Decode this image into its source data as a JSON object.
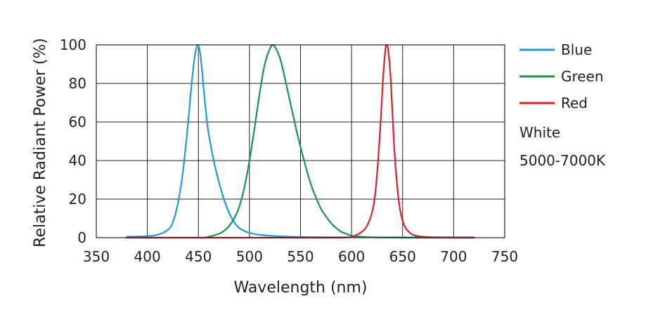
{
  "chart_data": {
    "type": "line",
    "title": "",
    "xlabel": "Wavelength (nm)",
    "ylabel": "Relative Radiant Power (%)",
    "xlim": [
      350,
      750
    ],
    "ylim": [
      0,
      100
    ],
    "x_ticks": [
      350,
      400,
      450,
      500,
      550,
      600,
      650,
      700,
      750
    ],
    "y_ticks": [
      0,
      20,
      40,
      60,
      80,
      100
    ],
    "grid": true,
    "legend_position": "right",
    "series": [
      {
        "name": "Blue",
        "color": "#1e9ad6",
        "x": [
          380,
          400,
          410,
          420,
          425,
          430,
          435,
          440,
          443,
          445,
          447,
          449,
          450,
          451,
          453,
          455,
          458,
          460,
          465,
          470,
          475,
          480,
          485,
          490,
          495,
          500,
          510,
          520,
          540,
          560,
          600,
          650,
          700,
          720
        ],
        "y": [
          0.5,
          0.8,
          1.5,
          4,
          8,
          18,
          35,
          60,
          78,
          88,
          96,
          100,
          99.5,
          98,
          90,
          78,
          62,
          54,
          40,
          29,
          20,
          13,
          8,
          5,
          3.5,
          2.5,
          1.5,
          1,
          0.5,
          0.3,
          0.2,
          0.2,
          0.2,
          0.2
        ]
      },
      {
        "name": "Green",
        "color": "#1a9447",
        "x": [
          380,
          450,
          460,
          470,
          475,
          480,
          485,
          490,
          495,
          500,
          505,
          510,
          515,
          520,
          523,
          525,
          530,
          535,
          540,
          545,
          550,
          555,
          560,
          565,
          570,
          575,
          580,
          585,
          590,
          595,
          600,
          610,
          620,
          650,
          700,
          720
        ],
        "y": [
          0,
          0,
          0.5,
          2,
          3.5,
          6,
          10,
          16,
          26,
          40,
          57,
          75,
          90,
          98,
          100,
          99,
          93,
          82,
          70,
          58,
          47,
          37,
          28,
          21,
          15,
          11,
          7.5,
          5,
          3,
          2,
          1,
          0.5,
          0.2,
          0,
          0,
          0
        ]
      },
      {
        "name": "Red",
        "color": "#d7202e",
        "x": [
          380,
          550,
          590,
          600,
          605,
          610,
          615,
          620,
          623,
          626,
          629,
          631,
          633,
          634,
          635,
          636,
          638,
          640,
          642,
          645,
          648,
          652,
          656,
          660,
          665,
          670,
          680,
          700,
          720
        ],
        "y": [
          0,
          0,
          0,
          0.5,
          1.5,
          3,
          6,
          13,
          22,
          40,
          65,
          84,
          97,
          100,
          99.5,
          97,
          85,
          65,
          45,
          25,
          13,
          6,
          3,
          1.5,
          0.8,
          0.5,
          0.2,
          0,
          0
        ]
      }
    ],
    "annotations": [
      "White",
      "5000-7000K"
    ]
  }
}
